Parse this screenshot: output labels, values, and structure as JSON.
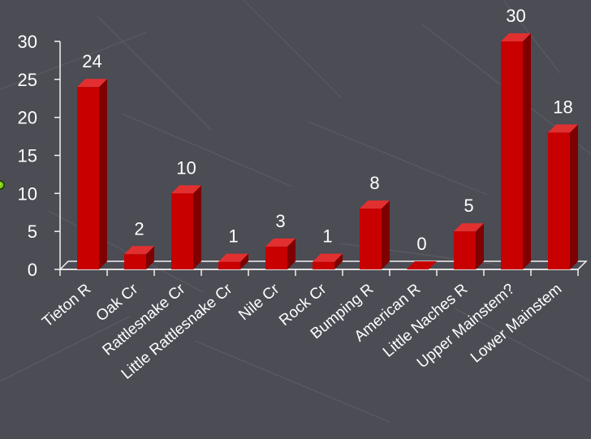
{
  "chart_data": {
    "type": "bar",
    "title": "",
    "xlabel": "",
    "ylabel": "",
    "categories": [
      "Tieton R",
      "Oak Cr",
      "Rattlesnake Cr",
      "Little Rattlesnake Cr",
      "Nile Cr",
      "Rock Cr",
      "Bumping R",
      "American R",
      "Little Naches R",
      "Upper Mainstem?",
      "Lower Mainstem"
    ],
    "values": [
      24,
      2,
      10,
      1,
      3,
      1,
      8,
      0,
      5,
      30,
      18
    ],
    "ylim": [
      0,
      30
    ],
    "yticks": [
      0,
      5,
      10,
      15,
      20,
      25,
      30
    ],
    "data_labels": true,
    "grid": false,
    "legend": "none",
    "style": "3d-bars"
  },
  "colors": {
    "background": "#4b4c54",
    "bar_front": "#c80000",
    "bar_side": "#7e0000",
    "bar_top": "#e23030",
    "text": "#ffffff",
    "axis": "#f2f2f2"
  },
  "bullet_icon": "green-bullet-icon"
}
